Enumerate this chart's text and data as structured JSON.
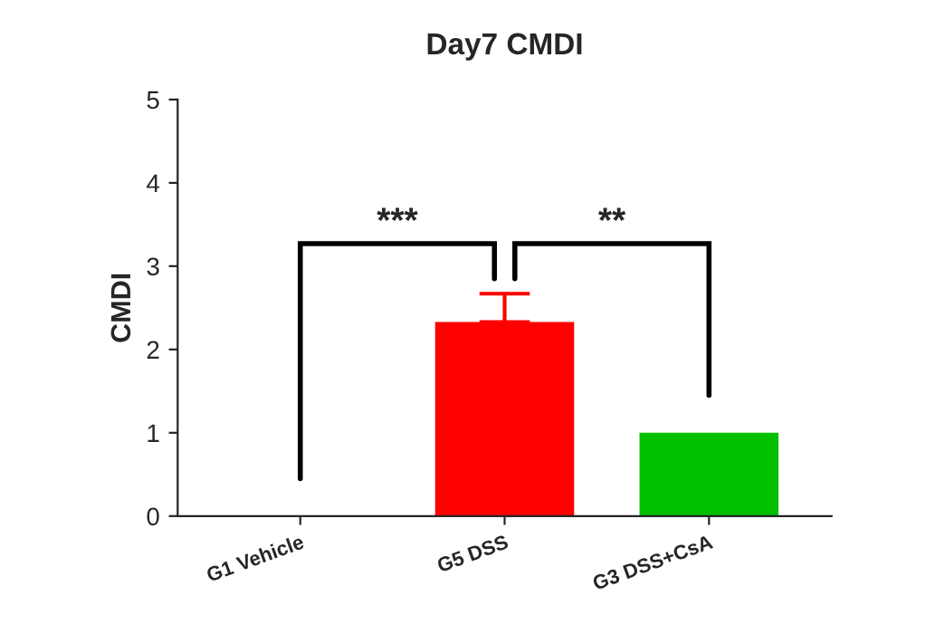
{
  "chart_data": {
    "type": "bar",
    "title": "Day7 CMDI",
    "ylabel": "CMDI",
    "categories": [
      "G1 Vehicle",
      "G5 DSS",
      "G3 DSS+CsA"
    ],
    "values": [
      0,
      2.33,
      1.0
    ],
    "colors": [
      "#ff0000",
      "#ff0000",
      "#00c000"
    ],
    "errors": [
      null,
      [
        2.33,
        2.67
      ],
      null
    ],
    "ylim": [
      0,
      5
    ],
    "yticks": [
      0,
      1,
      2,
      3,
      4,
      5
    ],
    "grid": false,
    "annotations": [
      "***",
      "**"
    ]
  }
}
